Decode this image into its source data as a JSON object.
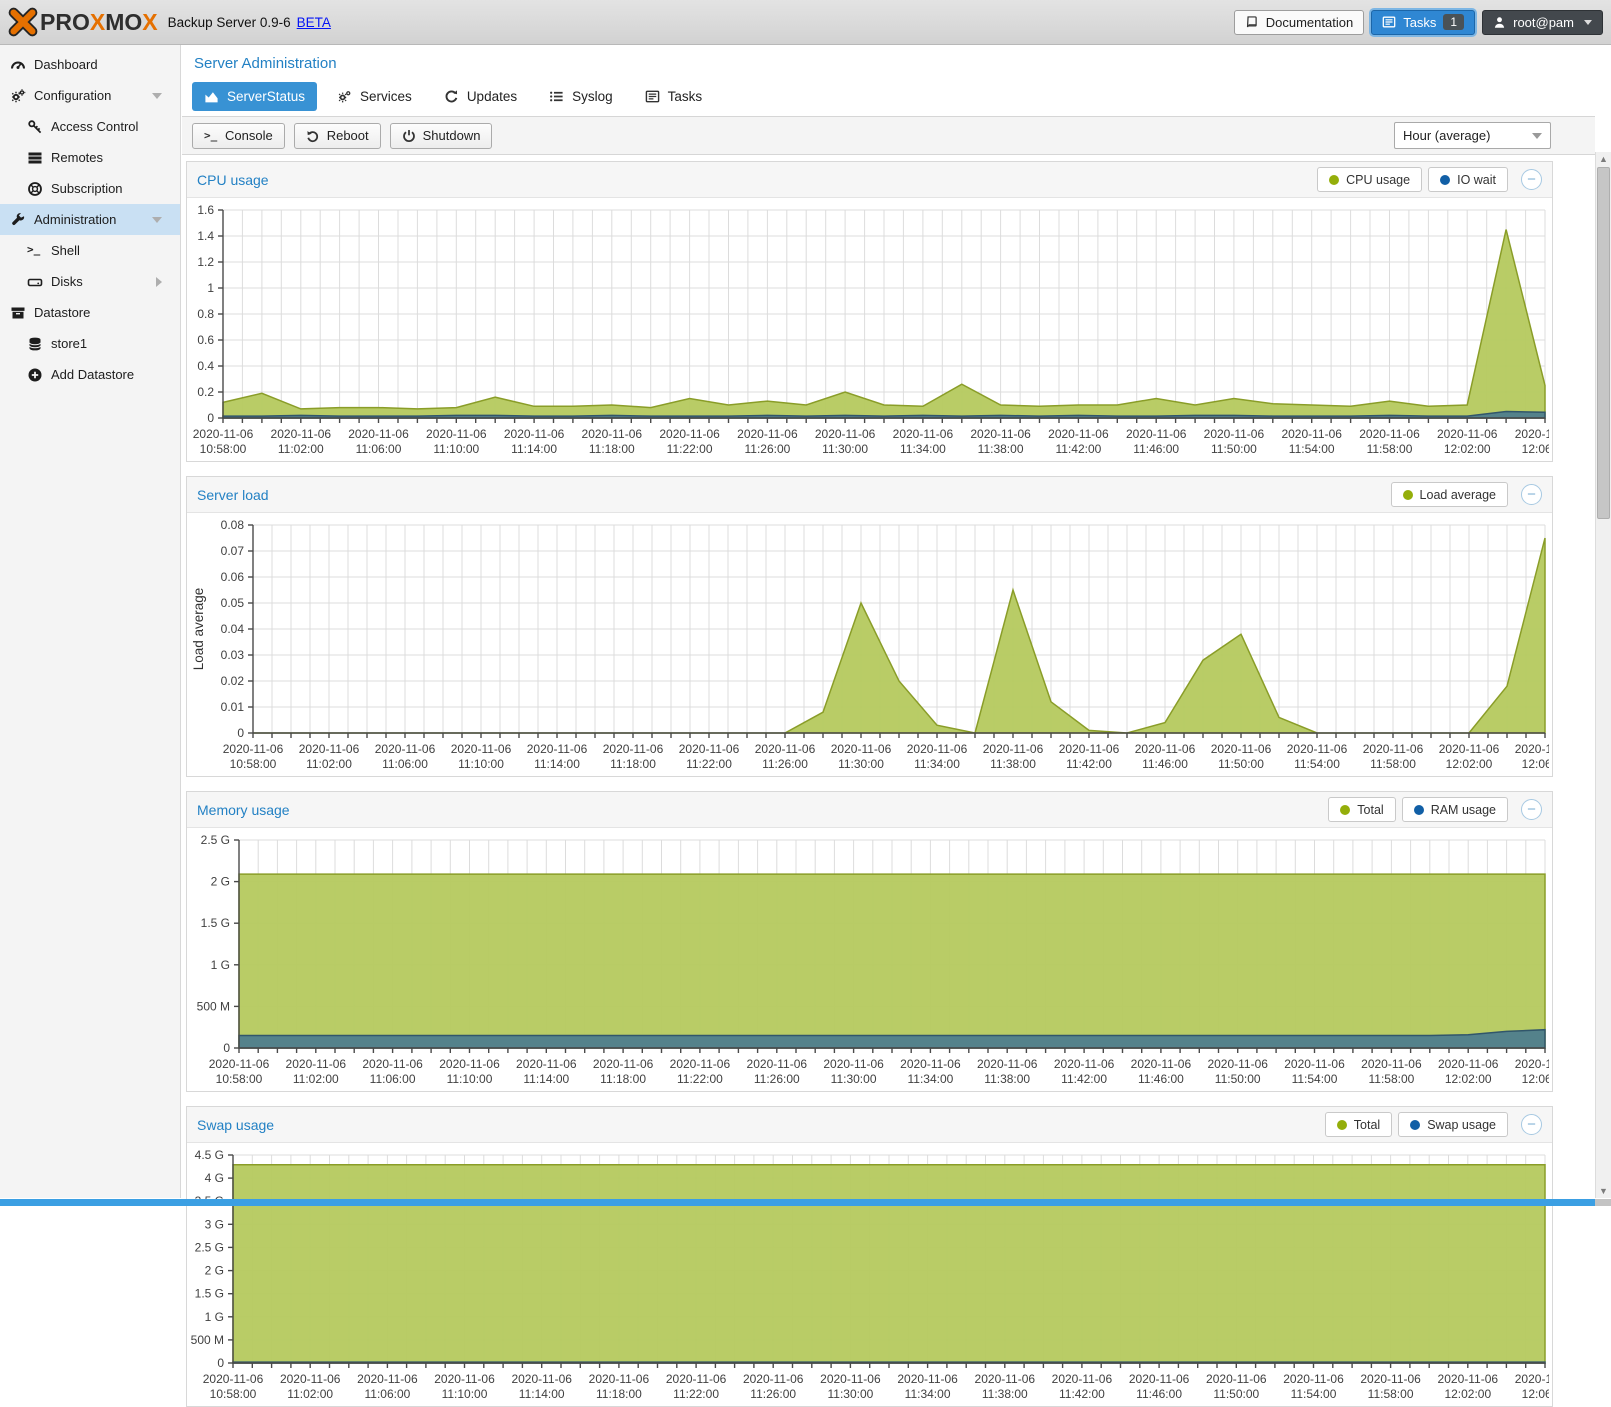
{
  "titlebar": {
    "logo_text": "PROXMOX",
    "subtitle": "Backup Server 0.9-6",
    "beta_label": "BETA",
    "documentation_label": "Documentation",
    "tasks_label": "Tasks",
    "tasks_badge": "1",
    "user_label": "root@pam"
  },
  "sidebar": {
    "items": [
      {
        "label": "Dashboard"
      },
      {
        "label": "Configuration"
      },
      {
        "label": "Access Control"
      },
      {
        "label": "Remotes"
      },
      {
        "label": "Subscription"
      },
      {
        "label": "Administration"
      },
      {
        "label": "Shell"
      },
      {
        "label": "Disks"
      },
      {
        "label": "Datastore"
      },
      {
        "label": "store1"
      },
      {
        "label": "Add Datastore"
      }
    ]
  },
  "main": {
    "title": "Server Administration",
    "tabs": [
      {
        "label": "ServerStatus",
        "active": true
      },
      {
        "label": "Services",
        "active": false
      },
      {
        "label": "Updates",
        "active": false
      },
      {
        "label": "Syslog",
        "active": false
      },
      {
        "label": "Tasks",
        "active": false
      }
    ],
    "toolbar": {
      "console_label": "Console",
      "reboot_label": "Reboot",
      "shutdown_label": "Shutdown",
      "interval_value": "Hour (average)"
    }
  },
  "colors": {
    "accent_blue": "#3892d4",
    "title_blue": "#2381c4",
    "chart_green_fill": "#b5c95e",
    "chart_green_stroke": "#8a9d28",
    "chart_teal_fill": "#4e7d8d",
    "chart_teal_stroke": "#31566b",
    "legend_green_dot": "#94ae0a",
    "legend_blue_dot": "#115fa6"
  },
  "chart_data": [
    {
      "type": "area",
      "title": "CPU usage",
      "date": "2020-11-06",
      "x": [
        "10:58",
        "11:00",
        "11:02",
        "11:04",
        "11:06",
        "11:08",
        "11:10",
        "11:12",
        "11:14",
        "11:16",
        "11:18",
        "11:20",
        "11:22",
        "11:24",
        "11:26",
        "11:28",
        "11:30",
        "11:32",
        "11:34",
        "11:36",
        "11:38",
        "11:40",
        "11:42",
        "11:44",
        "11:46",
        "11:48",
        "11:50",
        "11:52",
        "11:54",
        "11:56",
        "11:58",
        "12:00",
        "12:02",
        "12:04",
        "12:06"
      ],
      "ylim": [
        0,
        1.6
      ],
      "yticks": [
        0,
        0.2,
        0.4,
        0.6,
        0.8,
        1,
        1.2,
        1.4,
        1.6
      ],
      "ytick_labels": [
        "0",
        "0.2",
        "0.4",
        "0.6",
        "0.8",
        "1",
        "1.2",
        "1.4",
        "1.6"
      ],
      "grid": true,
      "legend_position": "top-right",
      "series": [
        {
          "name": "CPU usage",
          "fill": "#b5c95e",
          "stroke": "#8a9d28",
          "values": [
            0.12,
            0.19,
            0.07,
            0.08,
            0.08,
            0.07,
            0.08,
            0.16,
            0.09,
            0.09,
            0.1,
            0.08,
            0.15,
            0.1,
            0.13,
            0.1,
            0.2,
            0.1,
            0.09,
            0.26,
            0.1,
            0.09,
            0.1,
            0.1,
            0.15,
            0.1,
            0.15,
            0.11,
            0.1,
            0.09,
            0.13,
            0.09,
            0.1,
            1.45,
            0.25
          ]
        },
        {
          "name": "IO wait",
          "fill": "#4e7d8d",
          "stroke": "#31566b",
          "values": [
            0.015,
            0.015,
            0.02,
            0.015,
            0.015,
            0.015,
            0.02,
            0.02,
            0.015,
            0.015,
            0.02,
            0.015,
            0.015,
            0.015,
            0.02,
            0.015,
            0.02,
            0.015,
            0.02,
            0.015,
            0.02,
            0.015,
            0.02,
            0.015,
            0.015,
            0.02,
            0.02,
            0.015,
            0.015,
            0.015,
            0.02,
            0.015,
            0.015,
            0.05,
            0.045
          ]
        }
      ]
    },
    {
      "type": "area",
      "title": "Server load",
      "ylabel": "Load average",
      "date": "2020-11-06",
      "x": [
        "10:58",
        "11:00",
        "11:02",
        "11:04",
        "11:06",
        "11:08",
        "11:10",
        "11:12",
        "11:14",
        "11:16",
        "11:18",
        "11:20",
        "11:22",
        "11:24",
        "11:26",
        "11:28",
        "11:30",
        "11:32",
        "11:34",
        "11:36",
        "11:38",
        "11:40",
        "11:42",
        "11:44",
        "11:46",
        "11:48",
        "11:50",
        "11:52",
        "11:54",
        "11:56",
        "11:58",
        "12:00",
        "12:02",
        "12:04",
        "12:06"
      ],
      "ylim": [
        0,
        0.08
      ],
      "yticks": [
        0,
        0.01,
        0.02,
        0.03,
        0.04,
        0.05,
        0.06,
        0.07,
        0.08
      ],
      "ytick_labels": [
        "0",
        "0.01",
        "0.02",
        "0.03",
        "0.04",
        "0.05",
        "0.06",
        "0.07",
        "0.08"
      ],
      "grid": true,
      "legend_position": "top-right",
      "series": [
        {
          "name": "Load average",
          "fill": "#b5c95e",
          "stroke": "#8a9d28",
          "values": [
            0,
            0,
            0,
            0,
            0,
            0,
            0,
            0,
            0,
            0,
            0,
            0,
            0,
            0,
            0,
            0.008,
            0.05,
            0.02,
            0.003,
            0,
            0.055,
            0.012,
            0.001,
            0,
            0.004,
            0.028,
            0.038,
            0.006,
            0,
            0,
            0,
            0,
            0,
            0.018,
            0.075
          ]
        }
      ]
    },
    {
      "type": "area",
      "title": "Memory usage",
      "date": "2020-11-06",
      "unit": "G",
      "x": [
        "10:58",
        "11:00",
        "11:02",
        "11:04",
        "11:06",
        "11:08",
        "11:10",
        "11:12",
        "11:14",
        "11:16",
        "11:18",
        "11:20",
        "11:22",
        "11:24",
        "11:26",
        "11:28",
        "11:30",
        "11:32",
        "11:34",
        "11:36",
        "11:38",
        "11:40",
        "11:42",
        "11:44",
        "11:46",
        "11:48",
        "11:50",
        "11:52",
        "11:54",
        "11:56",
        "11:58",
        "12:00",
        "12:02",
        "12:04",
        "12:06"
      ],
      "ylim": [
        0,
        2.5
      ],
      "yticks": [
        0,
        0.5,
        1,
        1.5,
        2,
        2.5
      ],
      "ytick_labels": [
        "0",
        "500 M",
        "1 G",
        "1.5 G",
        "2 G",
        "2.5 G"
      ],
      "grid": true,
      "legend_position": "top-right",
      "series": [
        {
          "name": "Total",
          "fill": "#b5c95e",
          "stroke": "#8a9d28",
          "values": [
            2.09,
            2.09,
            2.09,
            2.09,
            2.09,
            2.09,
            2.09,
            2.09,
            2.09,
            2.09,
            2.09,
            2.09,
            2.09,
            2.09,
            2.09,
            2.09,
            2.09,
            2.09,
            2.09,
            2.09,
            2.09,
            2.09,
            2.09,
            2.09,
            2.09,
            2.09,
            2.09,
            2.09,
            2.09,
            2.09,
            2.09,
            2.09,
            2.09,
            2.09,
            2.09
          ]
        },
        {
          "name": "RAM usage",
          "fill": "#4e7d8d",
          "stroke": "#31566b",
          "values": [
            0.15,
            0.15,
            0.15,
            0.15,
            0.15,
            0.15,
            0.15,
            0.15,
            0.15,
            0.15,
            0.15,
            0.15,
            0.15,
            0.15,
            0.15,
            0.15,
            0.15,
            0.15,
            0.15,
            0.15,
            0.15,
            0.15,
            0.15,
            0.15,
            0.15,
            0.15,
            0.15,
            0.15,
            0.15,
            0.15,
            0.15,
            0.15,
            0.16,
            0.2,
            0.22
          ]
        }
      ]
    },
    {
      "type": "area",
      "title": "Swap usage",
      "date": "2020-11-06",
      "unit": "G",
      "x": [
        "10:58",
        "11:00",
        "11:02",
        "11:04",
        "11:06",
        "11:08",
        "11:10",
        "11:12",
        "11:14",
        "11:16",
        "11:18",
        "11:20",
        "11:22",
        "11:24",
        "11:26",
        "11:28",
        "11:30",
        "11:32",
        "11:34",
        "11:36",
        "11:38",
        "11:40",
        "11:42",
        "11:44",
        "11:46",
        "11:48",
        "11:50",
        "11:52",
        "11:54",
        "11:56",
        "11:58",
        "12:00",
        "12:02",
        "12:04",
        "12:06"
      ],
      "ylim": [
        0,
        4.5
      ],
      "yticks": [
        0,
        0.5,
        1,
        1.5,
        2,
        2.5,
        3,
        3.5,
        4,
        4.5
      ],
      "ytick_labels": [
        "0",
        "500 M",
        "1 G",
        "1.5 G",
        "2 G",
        "2.5 G",
        "3 G",
        "3.5 G",
        "4 G",
        "4.5 G"
      ],
      "grid": true,
      "legend_position": "top-right",
      "series": [
        {
          "name": "Total",
          "fill": "#b5c95e",
          "stroke": "#8a9d28",
          "values": [
            4.29,
            4.29,
            4.29,
            4.29,
            4.29,
            4.29,
            4.29,
            4.29,
            4.29,
            4.29,
            4.29,
            4.29,
            4.29,
            4.29,
            4.29,
            4.29,
            4.29,
            4.29,
            4.29,
            4.29,
            4.29,
            4.29,
            4.29,
            4.29,
            4.29,
            4.29,
            4.29,
            4.29,
            4.29,
            4.29,
            4.29,
            4.29,
            4.29,
            4.29,
            4.29
          ]
        },
        {
          "name": "Swap usage",
          "fill": "#4e7d8d",
          "stroke": "#31566b",
          "values": [
            0.02,
            0.02,
            0.02,
            0.02,
            0.02,
            0.02,
            0.02,
            0.02,
            0.02,
            0.02,
            0.02,
            0.02,
            0.02,
            0.02,
            0.02,
            0.02,
            0.02,
            0.02,
            0.02,
            0.02,
            0.02,
            0.02,
            0.02,
            0.02,
            0.02,
            0.02,
            0.02,
            0.02,
            0.02,
            0.02,
            0.02,
            0.02,
            0.02,
            0.02,
            0.02
          ]
        }
      ]
    }
  ]
}
